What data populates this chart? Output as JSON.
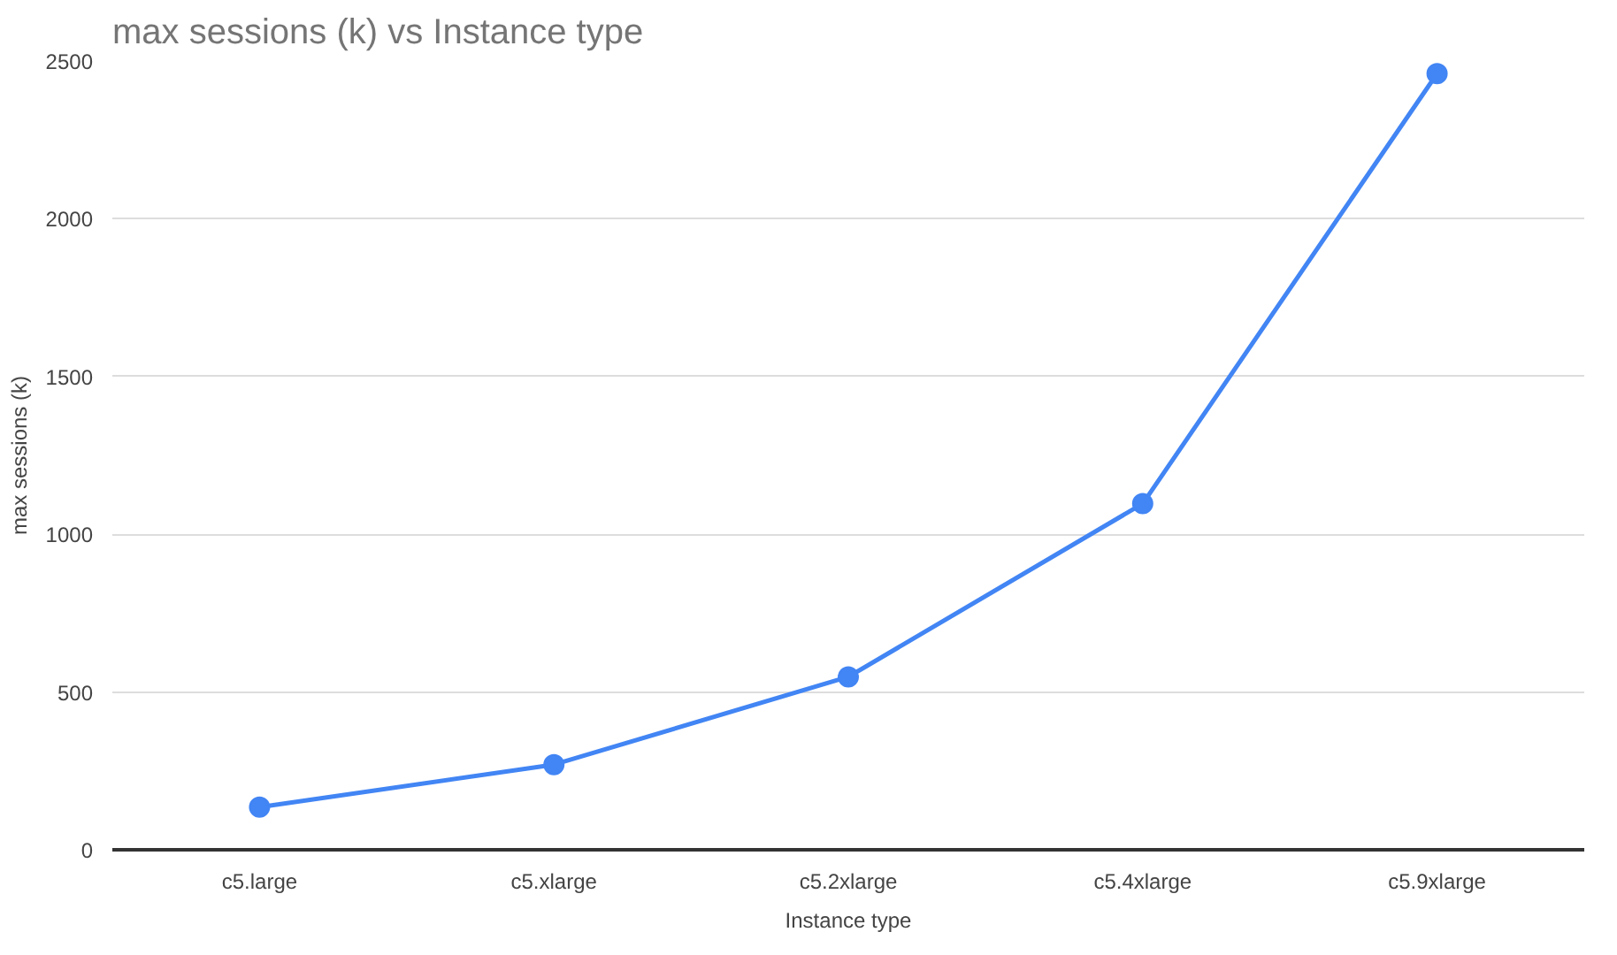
{
  "chart_data": {
    "type": "line",
    "title": "max sessions (k) vs Instance type",
    "xlabel": "Instance type",
    "ylabel": "max sessions (k)",
    "categories": [
      "c5.large",
      "c5.xlarge",
      "c5.2xlarge",
      "c5.4xlarge",
      "c5.9xlarge"
    ],
    "series": [
      {
        "color": "#4285f4",
        "values": [
          135,
          270,
          548,
          1097,
          2460
        ]
      }
    ],
    "ylim": [
      0,
      2500
    ],
    "yticks": [
      0,
      500,
      1000,
      1500,
      2000,
      2500
    ],
    "grid": "y",
    "marker": "circle",
    "line_style": "solid"
  }
}
